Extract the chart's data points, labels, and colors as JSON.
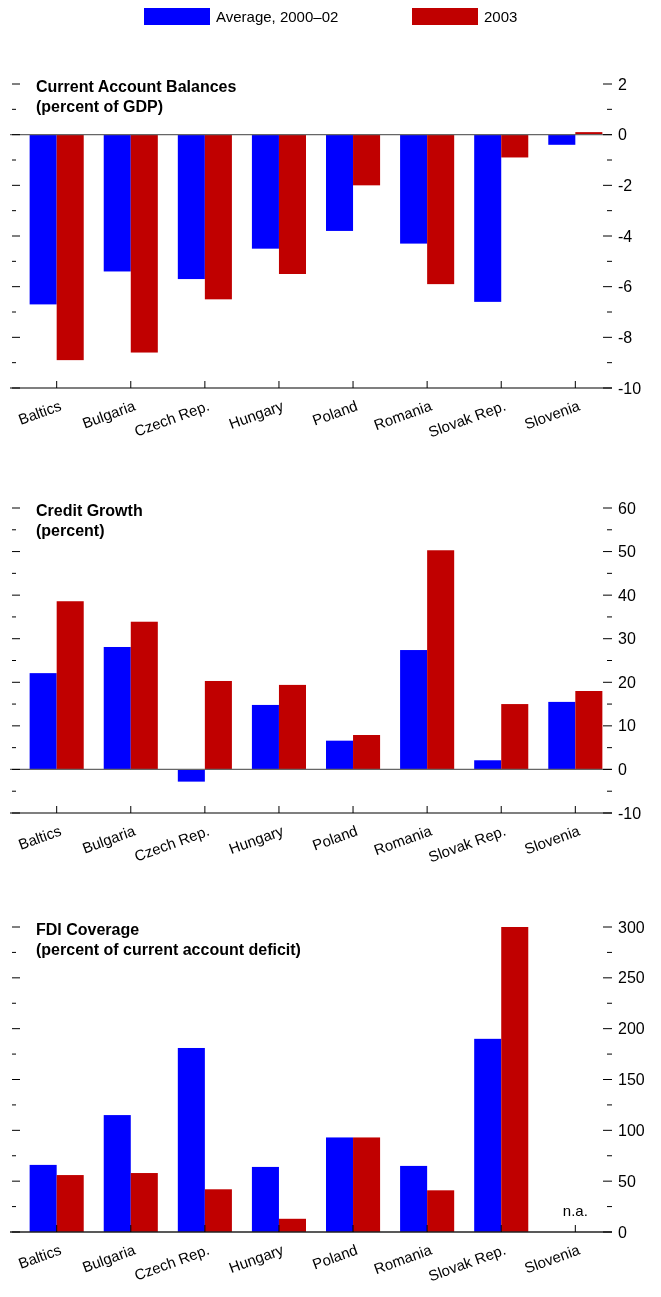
{
  "chart_data": [
    {
      "type": "bar",
      "title": "Current Account Balances\n(percent of GDP)",
      "categories": [
        "Baltics",
        "Bulgaria",
        "Czech Rep.",
        "Hungary",
        "Poland",
        "Romania",
        "Slovak Rep.",
        "Slovenia"
      ],
      "series": [
        {
          "name": "Average, 2000–02",
          "color": "#0000ff",
          "values": [
            -6.7,
            -5.4,
            -5.7,
            -4.5,
            -3.8,
            -4.3,
            -6.6,
            -0.4
          ]
        },
        {
          "name": "2003",
          "color": "#c00000",
          "values": [
            -8.9,
            -8.6,
            -6.5,
            -5.5,
            -2.0,
            -5.9,
            -0.9,
            0.1
          ]
        }
      ],
      "ylim": [
        -10,
        2
      ],
      "yticks": [
        -10,
        {
          "value": -9,
          "label": null
        },
        -8,
        {
          "value": -7,
          "label": null
        },
        -6,
        {
          "value": -5,
          "label": null
        },
        -4,
        {
          "value": -3,
          "label": null
        },
        -2,
        {
          "value": -1,
          "label": null
        },
        0,
        {
          "value": 1,
          "label": null
        },
        2
      ],
      "legend": "top"
    },
    {
      "type": "bar",
      "title": "Credit Growth\n(percent)",
      "categories": [
        "Baltics",
        "Bulgaria",
        "Czech Rep.",
        "Hungary",
        "Poland",
        "Romania",
        "Slovak Rep.",
        "Slovenia"
      ],
      "series": [
        {
          "color": "#0000ff",
          "values": [
            22.1,
            28.1,
            -2.8,
            14.8,
            6.6,
            27.4,
            2.1,
            15.5
          ]
        },
        {
          "color": "#c00000",
          "values": [
            38.6,
            33.9,
            20.3,
            19.4,
            7.9,
            50.3,
            15.0,
            18.0
          ]
        }
      ],
      "ylim": [
        -10,
        60
      ],
      "yticks": [
        -10,
        {
          "value": -5,
          "label": null
        },
        0,
        {
          "value": 5,
          "label": null
        },
        10,
        {
          "value": 15,
          "label": null
        },
        20,
        {
          "value": 25,
          "label": null
        },
        30,
        {
          "value": 35,
          "label": null
        },
        40,
        {
          "value": 45,
          "label": null
        },
        50,
        {
          "value": 55,
          "label": null
        },
        60
      ]
    },
    {
      "type": "bar",
      "title": "FDI Coverage\n(percent of current account deficit)",
      "categories": [
        "Baltics",
        "Bulgaria",
        "Czech Rep.",
        "Hungary",
        "Poland",
        "Romania",
        "Slovak Rep.",
        "Slovenia"
      ],
      "series": [
        {
          "color": "#0000ff",
          "values": [
            66,
            115,
            181,
            64,
            93,
            65,
            190,
            null
          ]
        },
        {
          "color": "#c00000",
          "values": [
            56,
            58,
            42,
            13,
            93,
            41,
            300,
            null
          ]
        }
      ],
      "ylim": [
        0,
        300
      ],
      "yticks": [
        0,
        {
          "value": 25,
          "label": null
        },
        50,
        {
          "value": 75,
          "label": null
        },
        100,
        {
          "value": 125,
          "label": null
        },
        150,
        {
          "value": 175,
          "label": null
        },
        200,
        {
          "value": 225,
          "label": null
        },
        250,
        {
          "value": 275,
          "label": null
        },
        300
      ],
      "annotations": [
        "n.a."
      ]
    }
  ]
}
